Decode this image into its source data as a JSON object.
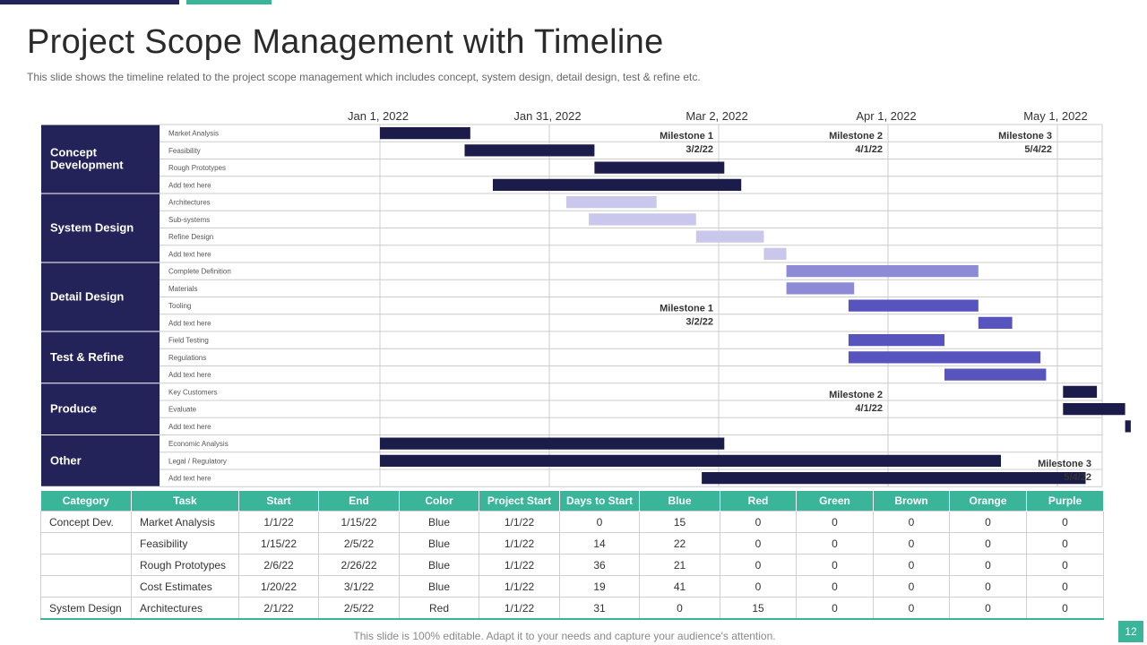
{
  "slide": {
    "title": "Project Scope Management with Timeline",
    "subtitle": "This slide shows the timeline related to the project scope management which includes concept, system design, detail design, test & refine etc.",
    "footer": "This slide is 100% editable. Adapt it to your needs and capture your audience's attention.",
    "page_number": "12"
  },
  "colors": {
    "navy": "#23235a",
    "bar_navy": "#1c1c4a",
    "teal": "#3ab59a",
    "lavender": "#c9c8ec",
    "periwinkle": "#8e8bd6",
    "indigo": "#5854bd"
  },
  "chart_data": {
    "type": "gantt",
    "x_axis": {
      "ticks": [
        {
          "date": "2022-01-01",
          "label": "Jan 1, 2022"
        },
        {
          "date": "2022-01-31",
          "label": "Jan 31, 2022"
        },
        {
          "date": "2022-03-02",
          "label": "Mar 2, 2022"
        },
        {
          "date": "2022-04-01",
          "label": "Apr 1, 2022"
        },
        {
          "date": "2022-05-01",
          "label": "May 1, 2022"
        }
      ],
      "range": [
        "2022-01-01",
        "2022-05-09"
      ]
    },
    "categories": [
      {
        "name": "Concept Development",
        "tasks": [
          {
            "task": "Market Analysis",
            "start": "2022-01-01",
            "end": "2022-01-17",
            "color": "bar_navy"
          },
          {
            "task": "Feasibility",
            "start": "2022-01-16",
            "end": "2022-02-08",
            "color": "bar_navy"
          },
          {
            "task": "Rough Prototypes",
            "start": "2022-02-08",
            "end": "2022-03-03",
            "color": "bar_navy"
          },
          {
            "task": "Add text here",
            "start": "2022-01-21",
            "end": "2022-03-06",
            "color": "bar_navy"
          }
        ]
      },
      {
        "name": "System Design",
        "tasks": [
          {
            "task": "Architectures",
            "start": "2022-02-03",
            "end": "2022-02-19",
            "color": "lavender"
          },
          {
            "task": "Sub-systems",
            "start": "2022-02-07",
            "end": "2022-02-26",
            "color": "lavender"
          },
          {
            "task": "Refine Design",
            "start": "2022-02-26",
            "end": "2022-03-10",
            "color": "lavender"
          },
          {
            "task": "Add text here",
            "start": "2022-03-10",
            "end": "2022-03-14",
            "color": "lavender"
          }
        ]
      },
      {
        "name": "Detail Design",
        "tasks": [
          {
            "task": "Complete Definition",
            "start": "2022-03-14",
            "end": "2022-04-17",
            "color": "periwinkle"
          },
          {
            "task": "Materials",
            "start": "2022-03-14",
            "end": "2022-03-26",
            "color": "periwinkle"
          },
          {
            "task": "Tooling",
            "start": "2022-03-25",
            "end": "2022-04-17",
            "color": "indigo"
          },
          {
            "task": "Add text here",
            "start": "2022-04-17",
            "end": "2022-04-23",
            "color": "indigo"
          }
        ]
      },
      {
        "name": "Test & Refine",
        "tasks": [
          {
            "task": "Field Testing",
            "start": "2022-03-25",
            "end": "2022-04-11",
            "color": "indigo"
          },
          {
            "task": "Regulations",
            "start": "2022-03-25",
            "end": "2022-04-28",
            "color": "indigo"
          },
          {
            "task": "Add text here",
            "start": "2022-04-11",
            "end": "2022-04-29",
            "color": "indigo"
          }
        ]
      },
      {
        "name": "Produce",
        "tasks": [
          {
            "task": "Key Customers",
            "start": "2022-05-02",
            "end": "2022-05-08",
            "color": "bar_navy"
          },
          {
            "task": "Evaluate",
            "start": "2022-05-02",
            "end": "2022-05-13",
            "color": "bar_navy"
          },
          {
            "task": "Add text here",
            "start": "2022-05-13",
            "end": "2022-05-14",
            "color": "bar_navy"
          }
        ]
      },
      {
        "name": "Other",
        "tasks": [
          {
            "task": "Economic Analysis",
            "start": "2022-01-01",
            "end": "2022-03-03",
            "color": "bar_navy"
          },
          {
            "task": "Legal / Regulatory",
            "start": "2022-01-01",
            "end": "2022-04-21",
            "color": "bar_navy"
          },
          {
            "task": "Add text here",
            "start": "2022-02-27",
            "end": "2022-05-06",
            "color": "bar_navy"
          }
        ]
      }
    ],
    "milestones": [
      {
        "name": "Milestone 1",
        "label": "3/2/22",
        "row": 0
      },
      {
        "name": "Milestone 2",
        "label": "4/1/22",
        "row": 0
      },
      {
        "name": "Milestone 3",
        "label": "5/4/22",
        "row": 0
      },
      {
        "name": "Milestone 1",
        "label": "3/2/22",
        "row": 10
      },
      {
        "name": "Milestone 2",
        "label": "4/1/22",
        "row": 15
      },
      {
        "name": "Milestone 3",
        "label": "5/4/22",
        "row": 19
      }
    ]
  },
  "table": {
    "headers": [
      "Category",
      "Task",
      "Start",
      "End",
      "Color",
      "Project Start",
      "Days to Start",
      "Blue",
      "Red",
      "Green",
      "Brown",
      "Orange",
      "Purple"
    ],
    "rows": [
      [
        "Concept Dev.",
        "Market Analysis",
        "1/1/22",
        "1/15/22",
        "Blue",
        "1/1/22",
        "0",
        "15",
        "0",
        "0",
        "0",
        "0",
        "0"
      ],
      [
        "",
        "Feasibility",
        "1/15/22",
        "2/5/22",
        "Blue",
        "1/1/22",
        "14",
        "22",
        "0",
        "0",
        "0",
        "0",
        "0"
      ],
      [
        "",
        "Rough Prototypes",
        "2/6/22",
        "2/26/22",
        "Blue",
        "1/1/22",
        "36",
        "21",
        "0",
        "0",
        "0",
        "0",
        "0"
      ],
      [
        "",
        "Cost Estimates",
        "1/20/22",
        "3/1/22",
        "Blue",
        "1/1/22",
        "19",
        "41",
        "0",
        "0",
        "0",
        "0",
        "0"
      ],
      [
        "System Design",
        "Architectures",
        "2/1/22",
        "2/5/22",
        "Red",
        "1/1/22",
        "31",
        "0",
        "15",
        "0",
        "0",
        "0",
        "0"
      ]
    ]
  }
}
